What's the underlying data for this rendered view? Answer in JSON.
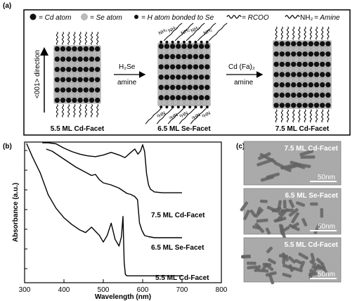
{
  "panel_a": {
    "label": "(a)",
    "legend": {
      "cd": "= Cd atom",
      "se": "= Se atom",
      "h": "= H atom bonded to Se",
      "rcoo": "= RCOO",
      "amine_pre": "= Amine",
      "amine_formula": "NH₂"
    },
    "direction_label": "<001> direction",
    "step1_reagent": "H₂Se",
    "step1_solvent": "amine",
    "step2_reagent": "Cd (Fa)₂",
    "step2_solvent": "amine",
    "captions": [
      "5.5 ML Cd-Facet",
      "6.5 ML Se-Facet",
      "7.5 ML Cd-Facet"
    ],
    "ligand_top": "NH₂",
    "ligand_bottom": "²HN",
    "colors": {
      "cd": "#111111",
      "se": "#b8b8b8",
      "frame": "#000000"
    }
  },
  "panel_b": {
    "label": "(b)",
    "chart_data": {
      "type": "line",
      "xlabel": "Wavelength (nm)",
      "ylabel": "Absorbance (a.u.)",
      "xlim": [
        300,
        800
      ],
      "xticks": [
        "300",
        "400",
        "500",
        "600",
        "700",
        "800"
      ],
      "y_ticks_labeled": false,
      "series": [
        {
          "name": "7.5 ML Cd-Facet",
          "x": [
            345,
            360,
            380,
            400,
            420,
            440,
            460,
            480,
            500,
            520,
            540,
            555,
            570,
            580,
            588,
            595,
            600,
            605,
            610,
            615,
            620,
            630,
            650,
            700
          ],
          "y": [
            1.0,
            0.98,
            0.93,
            0.88,
            0.84,
            0.81,
            0.79,
            0.78,
            0.8,
            0.83,
            0.8,
            0.77,
            0.83,
            0.87,
            0.81,
            0.85,
            0.92,
            0.84,
            0.58,
            0.45,
            0.4,
            0.37,
            0.36,
            0.36
          ]
        },
        {
          "name": "6.5 ML Se-Facet",
          "x": [
            355,
            370,
            390,
            410,
            430,
            450,
            470,
            480,
            490,
            500,
            520,
            540,
            560,
            570,
            580,
            587,
            592,
            598,
            605,
            615,
            630,
            650,
            700
          ],
          "y": [
            1.0,
            0.98,
            0.93,
            0.88,
            0.83,
            0.79,
            0.75,
            0.76,
            0.71,
            0.68,
            0.66,
            0.63,
            0.58,
            0.57,
            0.55,
            0.52,
            0.3,
            0.23,
            0.18,
            0.17,
            0.16,
            0.16,
            0.16
          ]
        },
        {
          "name": "5.5 ML Cd-Facet",
          "x": [
            305,
            320,
            340,
            360,
            380,
            400,
            420,
            440,
            455,
            470,
            490,
            500,
            510,
            520,
            530,
            540,
            546,
            550,
            553,
            556,
            560,
            570,
            600,
            650,
            700
          ],
          "y": [
            1.0,
            0.9,
            0.78,
            0.62,
            0.52,
            0.45,
            0.4,
            0.36,
            0.34,
            0.38,
            0.32,
            0.27,
            0.32,
            0.41,
            0.29,
            0.24,
            0.31,
            0.46,
            0.12,
            0.03,
            0.02,
            0.02,
            0.02,
            0.02,
            0.02
          ]
        }
      ]
    }
  },
  "panel_c": {
    "label": "(c)",
    "images": [
      {
        "title": "7.5 ML Cd-Facet",
        "scale": "50nm"
      },
      {
        "title": "6.5 ML Se-Facet",
        "scale": "50nm"
      },
      {
        "title": "5.5 ML Cd-Facet",
        "scale": "50nm"
      }
    ]
  }
}
